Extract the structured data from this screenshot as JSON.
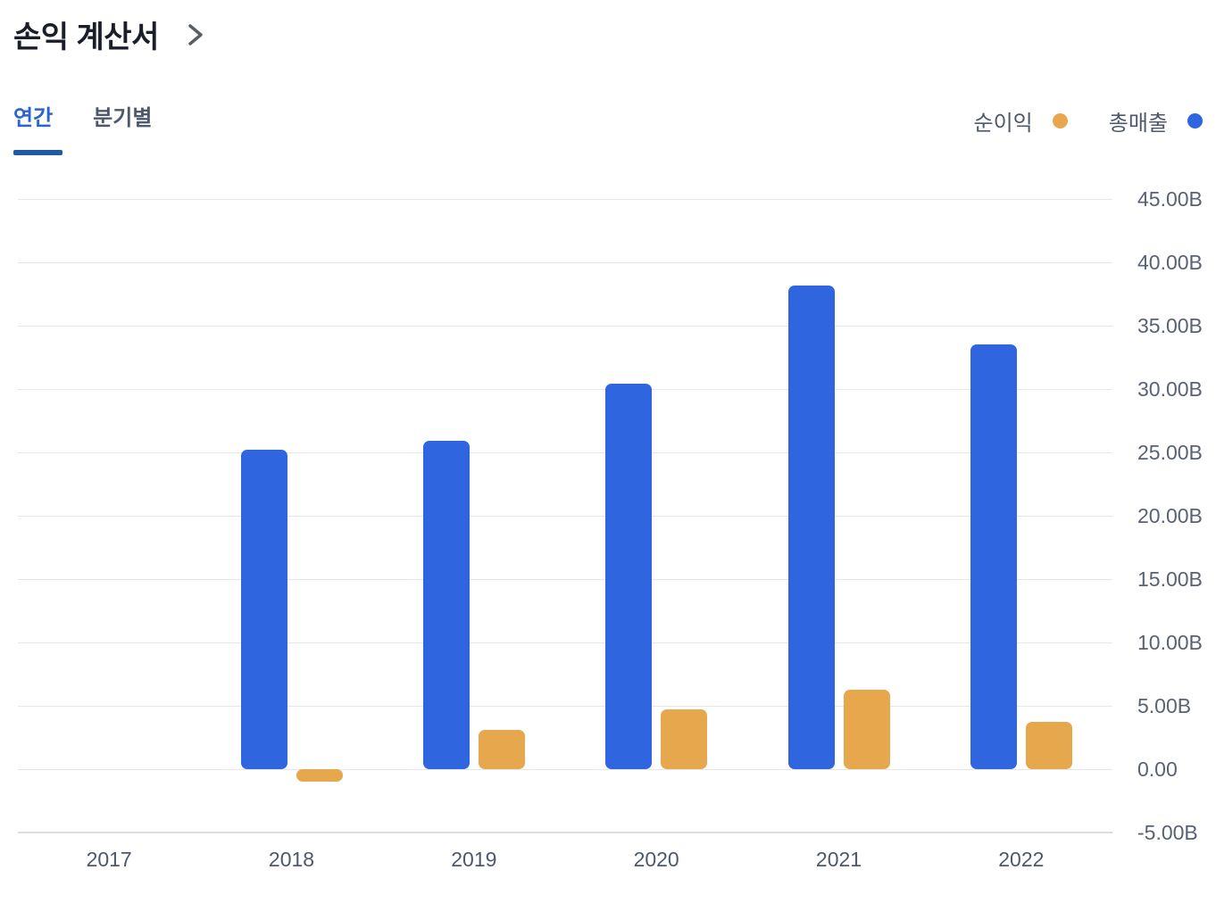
{
  "header": {
    "title": "손익 계산서"
  },
  "tabs": [
    {
      "label": "연간",
      "active": true
    },
    {
      "label": "분기별",
      "active": false
    }
  ],
  "legend": [
    {
      "label": "순이익",
      "color": "#e7a84d"
    },
    {
      "label": "총매출",
      "color": "#2f66e0"
    }
  ],
  "colors": {
    "revenue_bar": "#2f66e0",
    "net_income_bar": "#e7a84d",
    "active_tab": "#2a64cc",
    "tab_underline": "#1f5aa6",
    "gridline": "#e7e7e9",
    "baseline": "#d8dde7"
  },
  "chart_data": {
    "type": "bar",
    "title": "손익 계산서 (연간)",
    "categories": [
      "2017",
      "2018",
      "2019",
      "2020",
      "2021",
      "2022"
    ],
    "series": [
      {
        "name": "총매출",
        "key": "revenue",
        "color": "#2f66e0",
        "side": "left",
        "values": [
          null,
          25.2,
          25.9,
          30.4,
          38.2,
          33.5
        ]
      },
      {
        "name": "순이익",
        "key": "net-income",
        "color": "#e7a84d",
        "side": "right",
        "values": [
          null,
          -1.0,
          3.1,
          4.7,
          6.3,
          3.7
        ]
      }
    ],
    "unit": "B",
    "ylim": [
      -5,
      45
    ],
    "yticks": [
      {
        "label": "45.00B",
        "value": 45
      },
      {
        "label": "40.00B",
        "value": 40
      },
      {
        "label": "35.00B",
        "value": 35
      },
      {
        "label": "30.00B",
        "value": 30
      },
      {
        "label": "25.00B",
        "value": 25
      },
      {
        "label": "20.00B",
        "value": 20
      },
      {
        "label": "15.00B",
        "value": 15
      },
      {
        "label": "10.00B",
        "value": 10
      },
      {
        "label": "5.00B",
        "value": 5
      },
      {
        "label": "0.00",
        "value": 0
      },
      {
        "label": "-5.00B",
        "value": -5
      }
    ],
    "grid": true,
    "legend_position": "top-right"
  }
}
